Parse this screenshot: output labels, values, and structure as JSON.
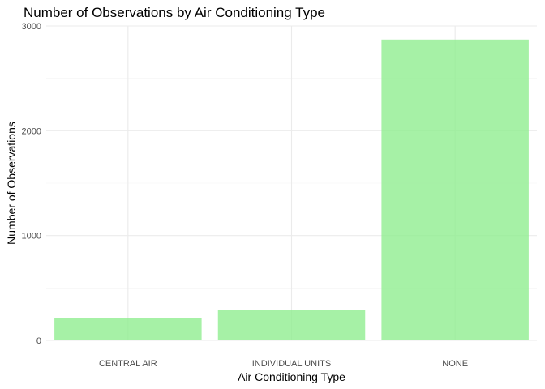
{
  "chart_data": {
    "type": "bar",
    "title": "Number of Observations by Air Conditioning Type",
    "xlabel": "Air Conditioning Type",
    "ylabel": "Number of Observations",
    "categories": [
      "CENTRAL AIR",
      "INDIVIDUAL UNITS",
      "NONE"
    ],
    "values": [
      210,
      290,
      2870
    ],
    "ylim": [
      0,
      3000
    ],
    "yticks": [
      0,
      1000,
      2000,
      3000
    ],
    "bar_color": "#90EE90",
    "grid": true,
    "legend": "none"
  }
}
